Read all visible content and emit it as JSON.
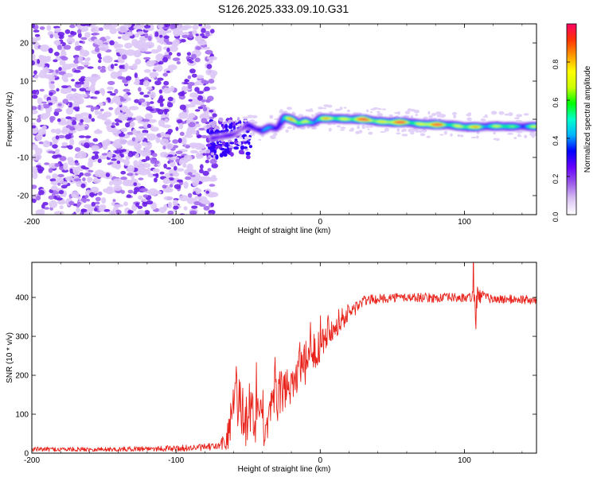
{
  "title": "S126.2025.333.09.10.G31",
  "chart_data": [
    {
      "type": "heatmap",
      "title": "S126.2025.333.09.10.G31",
      "xlabel": "Height of straight line (km)",
      "ylabel": "Frequency (Hz)",
      "xlim": [
        -200,
        150
      ],
      "ylim": [
        -25,
        25
      ],
      "xticks": [
        -200,
        -100,
        0,
        100
      ],
      "yticks": [
        -20,
        -10,
        0,
        10,
        20
      ],
      "colorbar": {
        "label": "Normalized spectral amplitude",
        "range": [
          0,
          1
        ],
        "ticks": [
          "0.0",
          "0.2",
          "0.4",
          "0.6",
          "0.8"
        ],
        "colors": [
          "#ffffff",
          "#d9c2f2",
          "#9b59e8",
          "#6600ff",
          "#0000ff",
          "#00b4ff",
          "#00ffcc",
          "#00ff00",
          "#ccff00",
          "#ffff00",
          "#ff9900",
          "#ff3300",
          "#ff0066"
        ]
      },
      "noise_region_km": [
        -200,
        -73
      ],
      "signal_track": {
        "x_km": [
          -75,
          -60,
          -50,
          -45,
          -40,
          -35,
          -30,
          -25,
          -20,
          -15,
          -10,
          -5,
          0,
          10,
          20,
          30,
          40,
          50,
          60,
          70,
          80,
          90,
          100,
          110,
          120,
          130,
          140,
          150
        ],
        "freq_hz": [
          -5,
          -4,
          -1.5,
          -2.5,
          -3,
          -2,
          -2.5,
          0.5,
          0,
          -1,
          -0.5,
          -1,
          0.2,
          0.2,
          0,
          0,
          -0.6,
          -0.8,
          -0.8,
          -1.3,
          -1.4,
          -1.5,
          -2,
          -2,
          -1.8,
          -1.9,
          -1.9,
          -1.9
        ],
        "peak_amplitude": [
          0.3,
          0.25,
          0.35,
          0.3,
          0.45,
          0.45,
          0.55,
          0.6,
          0.85,
          0.7,
          0.8,
          0.7,
          0.75,
          0.75,
          0.95,
          0.95,
          0.9,
          0.95,
          0.9,
          0.85,
          0.95,
          0.9,
          0.7,
          0.85,
          0.7,
          0.65,
          0.65,
          0.65
        ]
      }
    },
    {
      "type": "line",
      "xlabel": "Height of straight line (km)",
      "ylabel": "SNR (10 * v/v)",
      "xlim": [
        -200,
        150
      ],
      "ylim": [
        0,
        490
      ],
      "xticks": [
        -200,
        -100,
        0,
        100
      ],
      "yticks": [
        0,
        100,
        200,
        300,
        400
      ],
      "color": "#e8221a",
      "series": [
        {
          "name": "SNR",
          "x": [
            -200,
            -180,
            -160,
            -140,
            -120,
            -100,
            -80,
            -70,
            -65,
            -62,
            -58,
            -55,
            -52,
            -50,
            -48,
            -45,
            -42,
            -40,
            -38,
            -35,
            -32,
            -30,
            -28,
            -25,
            -22,
            -20,
            -18,
            -15,
            -12,
            -10,
            -8,
            -5,
            -3,
            0,
            3,
            5,
            8,
            10,
            15,
            20,
            25,
            30,
            35,
            40,
            50,
            60,
            70,
            80,
            90,
            100,
            105,
            107,
            108,
            109,
            110,
            115,
            120,
            130,
            140,
            150
          ],
          "y": [
            10,
            10,
            10,
            10,
            12,
            12,
            15,
            18,
            35,
            80,
            150,
            120,
            90,
            60,
            110,
            75,
            120,
            60,
            45,
            95,
            130,
            140,
            150,
            165,
            170,
            185,
            195,
            210,
            215,
            230,
            240,
            255,
            270,
            285,
            300,
            320,
            325,
            330,
            345,
            360,
            375,
            390,
            395,
            395,
            400,
            400,
            400,
            398,
            400,
            398,
            400,
            390,
            330,
            395,
            405,
            400,
            395,
            395,
            395,
            390
          ],
          "noise_amplitude": [
            6,
            6,
            6,
            6,
            7,
            8,
            9,
            10,
            35,
            70,
            90,
            80,
            70,
            60,
            70,
            60,
            65,
            45,
            35,
            50,
            50,
            60,
            60,
            60,
            60,
            60,
            55,
            55,
            55,
            60,
            55,
            55,
            50,
            50,
            45,
            40,
            40,
            35,
            30,
            25,
            20,
            15,
            12,
            12,
            12,
            12,
            12,
            12,
            12,
            12,
            15,
            40,
            90,
            60,
            20,
            12,
            12,
            12,
            12,
            12
          ]
        }
      ]
    }
  ]
}
